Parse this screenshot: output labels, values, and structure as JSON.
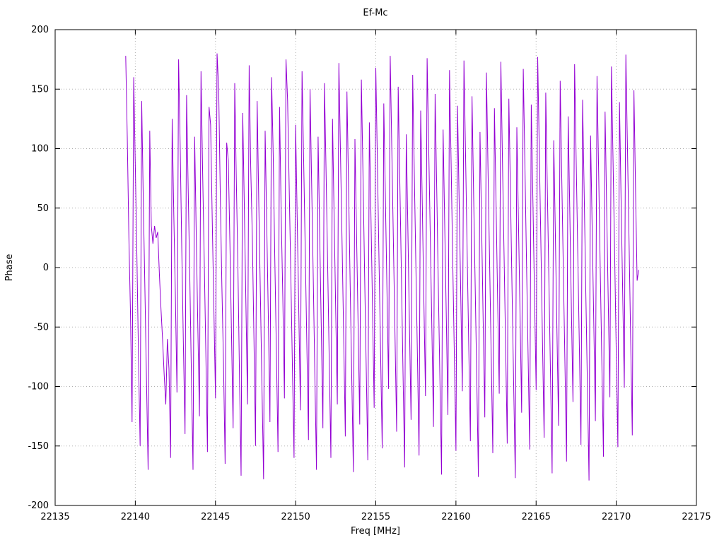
{
  "page_title": "Ef-Mc",
  "chart_data": {
    "type": "line",
    "title": "Ef-Mc",
    "xlabel": "Freq [MHz]",
    "ylabel": "Phase",
    "xlim": [
      22135,
      22175
    ],
    "ylim": [
      -200,
      200
    ],
    "x_ticks": [
      22135,
      22140,
      22145,
      22150,
      22155,
      22160,
      22165,
      22170,
      22175
    ],
    "y_ticks": [
      -200,
      -150,
      -100,
      -50,
      0,
      50,
      100,
      150,
      200
    ],
    "grid": true,
    "legend": "none",
    "line_color": "#9400d3",
    "grid_color": "#b0b0b0",
    "border_color": "#000000",
    "series": [
      {
        "name": "Ef-Mc",
        "x_start": 22139.4,
        "x_step": 0.1,
        "values": [
          178,
          110,
          25,
          -40,
          -130,
          160,
          85,
          10,
          -75,
          -150,
          140,
          55,
          -20,
          -95,
          -170,
          115,
          35,
          20,
          35,
          25,
          30,
          -5,
          -35,
          -60,
          -90,
          -115,
          -60,
          -85,
          -160,
          125,
          45,
          -25,
          -105,
          175,
          100,
          15,
          -65,
          -140,
          145,
          65,
          -10,
          -90,
          -170,
          110,
          30,
          -50,
          -125,
          165,
          80,
          5,
          -70,
          -155,
          135,
          120,
          40,
          -35,
          -110,
          180,
          150,
          60,
          -15,
          -80,
          -165,
          105,
          90,
          20,
          -55,
          -135,
          155,
          75,
          0,
          -95,
          -175,
          130,
          50,
          -30,
          -115,
          170,
          85,
          25,
          -60,
          -150,
          140,
          55,
          -20,
          -100,
          -178,
          115,
          35,
          -45,
          -130,
          160,
          95,
          10,
          -70,
          -155,
          135,
          45,
          -25,
          -110,
          175,
          140,
          65,
          -5,
          -85,
          -160,
          120,
          40,
          -40,
          -120,
          165,
          90,
          15,
          -65,
          -145,
          150,
          70,
          -10,
          -90,
          -170,
          110,
          30,
          -50,
          -135,
          155,
          80,
          0,
          -80,
          -160,
          125,
          45,
          -35,
          -115,
          172,
          95,
          18,
          -62,
          -142,
          148,
          68,
          -12,
          -92,
          -172,
          108,
          28,
          -52,
          -132,
          158,
          78,
          -2,
          -82,
          -162,
          122,
          42,
          -38,
          -118,
          168,
          88,
          8,
          -72,
          -152,
          138,
          58,
          -22,
          -102,
          178,
          98,
          22,
          -58,
          -138,
          152,
          72,
          -8,
          -88,
          -168,
          112,
          32,
          -48,
          -128,
          162,
          82,
          2,
          -78,
          -158,
          132,
          52,
          -28,
          -108,
          176,
          102,
          26,
          -54,
          -134,
          146,
          66,
          -14,
          -94,
          -174,
          116,
          36,
          -44,
          -124,
          166,
          86,
          6,
          -74,
          -154,
          136,
          56,
          -24,
          -104,
          174,
          94,
          14,
          -66,
          -146,
          144,
          64,
          -16,
          -96,
          -176,
          114,
          34,
          -46,
          -126,
          164,
          84,
          4,
          -76,
          -156,
          134,
          54,
          -26,
          -106,
          173,
          92,
          12,
          -68,
          -148,
          142,
          62,
          -18,
          -98,
          -177,
          118,
          38,
          -42,
          -122,
          167,
          87,
          7,
          -73,
          -153,
          137,
          57,
          -23,
          -103,
          177,
          97,
          17,
          -63,
          -143,
          147,
          67,
          -13,
          -93,
          -173,
          107,
          27,
          -53,
          -133,
          157,
          77,
          -3,
          -83,
          -163,
          127,
          47,
          -33,
          -113,
          171,
          91,
          11,
          -69,
          -149,
          141,
          61,
          -19,
          -99,
          -179,
          111,
          31,
          -49,
          -129,
          161,
          81,
          1,
          -79,
          -159,
          131,
          51,
          -29,
          -109,
          169,
          89,
          9,
          -71,
          -151,
          139,
          59,
          -21,
          -101,
          179,
          99,
          19,
          -61,
          -141,
          149,
          69,
          -11,
          -2
        ]
      }
    ]
  }
}
